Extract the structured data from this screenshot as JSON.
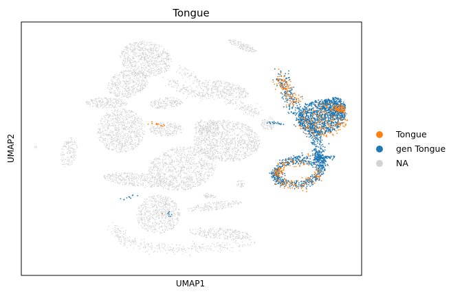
{
  "chart_data": {
    "type": "scatter",
    "title": "Tongue",
    "xlabel": "UMAP1",
    "ylabel": "UMAP2",
    "grid": false,
    "ticks": false,
    "legend_position": "right",
    "series": [
      {
        "name": "NA",
        "color": "#d3d3d3"
      },
      {
        "name": "gen Tongue",
        "color": "#1f77b4"
      },
      {
        "name": "Tongue",
        "color": "#ff7f0e"
      }
    ],
    "legend_order": [
      "Tongue",
      "gen Tongue",
      "NA"
    ]
  }
}
